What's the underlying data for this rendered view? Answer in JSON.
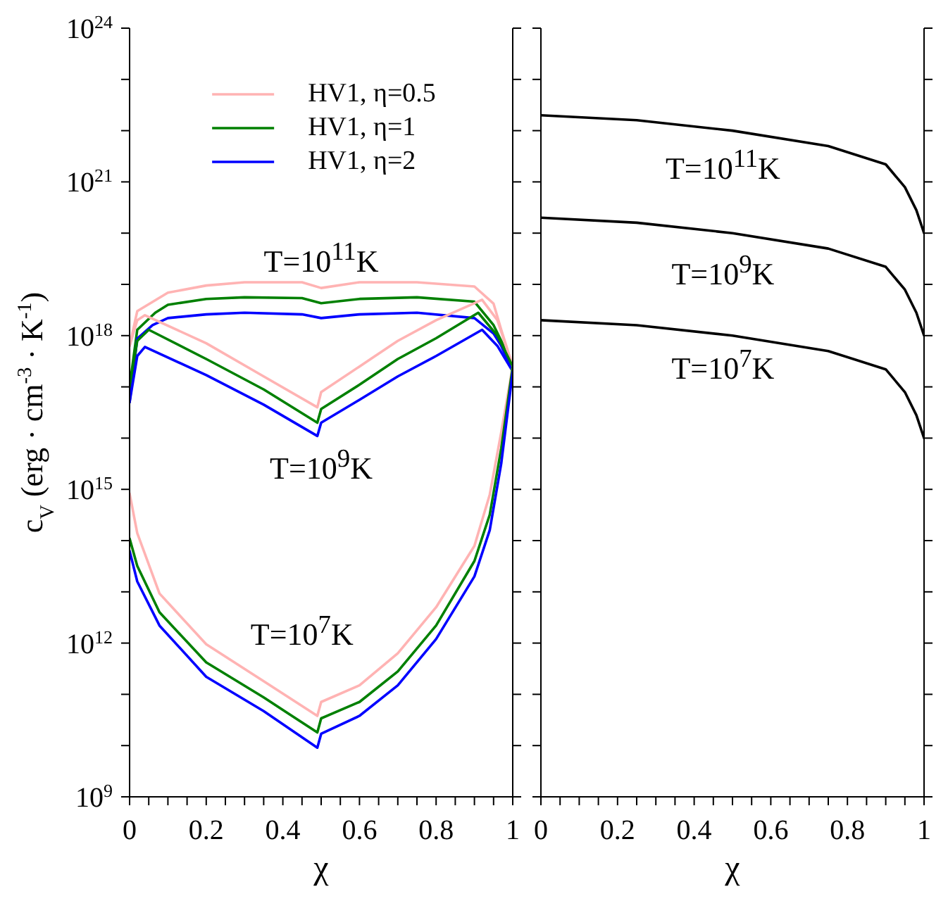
{
  "chart_data": [
    {
      "type": "line",
      "xlabel": "χ",
      "ylabel": "c$_{V}$ (erg · cm$^{-3}$ · K$^{-1}$)",
      "log": true,
      "legend": "top",
      "xlim": [
        0,
        1
      ],
      "ylim": [
        1000000000.0,
        1e+24
      ],
      "xticks": [
        0,
        {
          "value": 0.05,
          "label": null
        },
        {
          "value": 0.1,
          "label": null
        },
        {
          "value": 0.15,
          "label": null
        },
        0.2,
        {
          "value": 0.25,
          "label": null
        },
        {
          "value": 0.3,
          "label": null
        },
        {
          "value": 0.35,
          "label": null
        },
        0.4,
        {
          "value": 0.45,
          "label": null
        },
        {
          "value": 0.5,
          "label": null
        },
        {
          "value": 0.55,
          "label": null
        },
        0.6,
        {
          "value": 0.65,
          "label": null
        },
        {
          "value": 0.7,
          "label": null
        },
        {
          "value": 0.75,
          "label": null
        },
        0.8,
        {
          "value": 0.85,
          "label": null
        },
        {
          "value": 0.9,
          "label": null
        },
        {
          "value": 0.95,
          "label": null
        },
        1
      ],
      "yticks": [
        {
          "value": 1000000000.0,
          "label": "10$^{9}$"
        },
        {
          "value": 10000000000.0,
          "label": null
        },
        {
          "value": 100000000000.0,
          "label": null
        },
        {
          "value": 1000000000000.0,
          "label": "10$^{12}$"
        },
        {
          "value": 10000000000000.0,
          "label": null
        },
        {
          "value": 100000000000000.0,
          "label": null
        },
        {
          "value": 1000000000000000.0,
          "label": "10$^{15}$"
        },
        {
          "value": 1e+16,
          "label": null
        },
        {
          "value": 1e+17,
          "label": null
        },
        {
          "value": 1e+18,
          "label": "10$^{18}$"
        },
        {
          "value": 1e+19,
          "label": null
        },
        {
          "value": 1e+20,
          "label": null
        },
        {
          "value": 1e+21,
          "label": "10$^{21}$"
        },
        {
          "value": 1e+22,
          "label": null
        },
        {
          "value": 1e+23,
          "label": null
        },
        {
          "value": 1e+24,
          "label": "10$^{24}$"
        }
      ],
      "annotations": [
        "T=10$^{11}$K",
        "T=10$^{9}$K",
        "T=10$^{7}$K"
      ],
      "series": [
        {
          "name": "HV1, η=0.5",
          "color": "#ffb3b3",
          "x": [
            0,
            0.02,
            0.1,
            0.2,
            0.3,
            0.45,
            0.5,
            0.6,
            0.75,
            0.9,
            0.95,
            0.97,
            1
          ],
          "values": [
            6.3e+17,
            3e+18,
            6.9e+18,
            9.5e+18,
            1.1e+19,
            1.1e+19,
            8.5e+18,
            1.1e+19,
            1.1e+19,
            9.1e+18,
            4.2e+18,
            1.3e+18,
            2.5e+17
          ]
        },
        {
          "name": "HV1, η=1",
          "color": "#008000",
          "x": [
            0,
            0.02,
            0.067,
            0.1,
            0.2,
            0.3,
            0.45,
            0.5,
            0.6,
            0.75,
            0.9,
            0.95,
            0.97,
            1
          ],
          "values": [
            1e+17,
            1.3e+18,
            2.8e+18,
            4e+18,
            5.2e+18,
            5.6e+18,
            5.4e+18,
            4.3e+18,
            5.2e+18,
            5.6e+18,
            4.6e+18,
            1.6e+18,
            7.9e+17,
            2.5e+17
          ]
        },
        {
          "name": "HV1, η=2",
          "color": "#0000ff",
          "x": [
            0,
            0.02,
            0.06,
            0.1,
            0.2,
            0.3,
            0.45,
            0.5,
            0.6,
            0.75,
            0.9,
            0.95,
            0.97,
            1
          ],
          "values": [
            5e+16,
            8.7e+17,
            1.6e+18,
            2.2e+18,
            2.6e+18,
            2.8e+18,
            2.6e+18,
            2.2e+18,
            2.6e+18,
            2.8e+18,
            2.2e+18,
            1.1e+18,
            6.3e+17,
            2e+17
          ]
        },
        {
          "color": "#ffb3b3",
          "x": [
            0,
            0.02,
            0.04,
            0.2,
            0.35,
            0.49,
            0.5,
            0.6,
            0.7,
            0.8,
            0.92,
            0.96,
            1
          ],
          "values": [
            6.3e+17,
            2e+18,
            2.5e+18,
            7.1e+17,
            1.6e+17,
            4e+16,
            7.9e+16,
            2.5e+17,
            7.9e+17,
            2e+18,
            5e+18,
            2e+18,
            2.5e+17
          ]
        },
        {
          "color": "#008000",
          "x": [
            0,
            0.02,
            0.05,
            0.2,
            0.35,
            0.49,
            0.5,
            0.6,
            0.7,
            0.8,
            0.91,
            0.96,
            1
          ],
          "values": [
            1e+17,
            7.9e+17,
            1.3e+18,
            3.5e+17,
            8.9e+16,
            2e+16,
            3.7e+16,
            1.1e+17,
            3.5e+17,
            8.9e+17,
            2.8e+18,
            1e+18,
            2.5e+17
          ]
        },
        {
          "color": "#0000ff",
          "x": [
            0,
            0.02,
            0.04,
            0.2,
            0.35,
            0.49,
            0.5,
            0.6,
            0.7,
            0.8,
            0.92,
            0.96,
            1
          ],
          "values": [
            5e+16,
            4e+17,
            6e+17,
            1.7e+17,
            4.5e+16,
            1.1e+16,
            2e+16,
            5.6e+16,
            1.6e+17,
            4e+17,
            1.3e+18,
            6.3e+17,
            2e+17
          ]
        },
        {
          "color": "#ffb3b3",
          "x": [
            0,
            0.02,
            0.078,
            0.2,
            0.35,
            0.49,
            0.5,
            0.6,
            0.7,
            0.8,
            0.9,
            0.94,
            0.97,
            1
          ],
          "values": [
            830000000000000.0,
            140000000000000.0,
            9300000000000.0,
            950000000000.0,
            180000000000.0,
            38000000000.0,
            71000000000.0,
            150000000000.0,
            630000000000.0,
            5000000000000.0,
            79000000000000.0,
            790000000000000.0,
            1.3e+16,
            2.5e+17
          ]
        },
        {
          "color": "#008000",
          "x": [
            0,
            0.02,
            0.078,
            0.2,
            0.35,
            0.49,
            0.5,
            0.6,
            0.7,
            0.8,
            0.9,
            0.94,
            0.97,
            1
          ],
          "values": [
            110000000000000.0,
            32000000000000.0,
            4000000000000.0,
            420000000000.0,
            87000000000.0,
            18000000000.0,
            34000000000.0,
            71000000000.0,
            280000000000.0,
            2200000000000.0,
            40000000000000.0,
            320000000000000.0,
            6300000000000000.0,
            2.5e+17
          ]
        },
        {
          "color": "#0000ff",
          "x": [
            0,
            0.02,
            0.078,
            0.2,
            0.35,
            0.49,
            0.5,
            0.6,
            0.7,
            0.8,
            0.9,
            0.94,
            0.97,
            1
          ],
          "values": [
            63000000000000.0,
            16000000000000.0,
            2200000000000.0,
            220000000000.0,
            47000000000.0,
            9100000000.0,
            17000000000.0,
            38000000000.0,
            150000000000.0,
            1200000000000.0,
            20000000000000.0,
            160000000000000.0,
            3200000000000000.0,
            2e+17
          ]
        }
      ]
    },
    {
      "type": "line",
      "xlabel": "χ",
      "log": true,
      "tick_labels": "x",
      "xlim": [
        0,
        1
      ],
      "ylim": [
        1000000000.0,
        1e+24
      ],
      "xticks": [
        0,
        {
          "value": 0.05,
          "label": null
        },
        {
          "value": 0.1,
          "label": null
        },
        {
          "value": 0.15,
          "label": null
        },
        0.2,
        {
          "value": 0.25,
          "label": null
        },
        {
          "value": 0.3,
          "label": null
        },
        {
          "value": 0.35,
          "label": null
        },
        0.4,
        {
          "value": 0.45,
          "label": null
        },
        {
          "value": 0.5,
          "label": null
        },
        {
          "value": 0.55,
          "label": null
        },
        0.6,
        {
          "value": 0.65,
          "label": null
        },
        {
          "value": 0.7,
          "label": null
        },
        {
          "value": 0.75,
          "label": null
        },
        0.8,
        {
          "value": 0.85,
          "label": null
        },
        {
          "value": 0.9,
          "label": null
        },
        {
          "value": 0.95,
          "label": null
        },
        1
      ],
      "yticks": [
        {
          "value": 1000000000.0,
          "label": null
        },
        {
          "value": 10000000000.0,
          "label": null
        },
        {
          "value": 100000000000.0,
          "label": null
        },
        {
          "value": 1000000000000.0,
          "label": null
        },
        {
          "value": 10000000000000.0,
          "label": null
        },
        {
          "value": 100000000000000.0,
          "label": null
        },
        {
          "value": 1000000000000000.0,
          "label": null
        },
        {
          "value": 1e+16,
          "label": null
        },
        {
          "value": 1e+17,
          "label": null
        },
        {
          "value": 1e+18,
          "label": null
        },
        {
          "value": 1e+19,
          "label": null
        },
        {
          "value": 1e+20,
          "label": null
        },
        {
          "value": 1e+21,
          "label": null
        },
        {
          "value": 1e+22,
          "label": null
        },
        {
          "value": 1e+23,
          "label": null
        },
        {
          "value": 1e+24,
          "label": null
        }
      ],
      "annotations": [
        "T=10$^{11}$K",
        "T=10$^{9}$K",
        "T=10$^{7}$K"
      ],
      "series": [
        {
          "color": "#000000",
          "x": [
            0,
            0.25,
            0.5,
            0.75,
            0.9,
            0.95,
            0.98,
            1
          ],
          "values": [
            2e+22,
            1.6e+22,
            1e+22,
            5e+21,
            2.2e+21,
            7.9e+20,
            2.8e+20,
            1e+20
          ]
        },
        {
          "color": "#000000",
          "x": [
            0,
            0.25,
            0.5,
            0.75,
            0.9,
            0.95,
            0.98,
            1
          ],
          "values": [
            2e+20,
            1.6e+20,
            1e+20,
            5e+19,
            2.2e+19,
            7.9e+18,
            2.8e+18,
            1e+18
          ]
        },
        {
          "color": "#000000",
          "x": [
            0,
            0.25,
            0.5,
            0.75,
            0.9,
            0.95,
            0.98,
            1
          ],
          "values": [
            2e+18,
            1.6e+18,
            1e+18,
            5e+17,
            2.2e+17,
            7.9e+16,
            2.8e+16,
            1e+16
          ]
        }
      ]
    }
  ]
}
